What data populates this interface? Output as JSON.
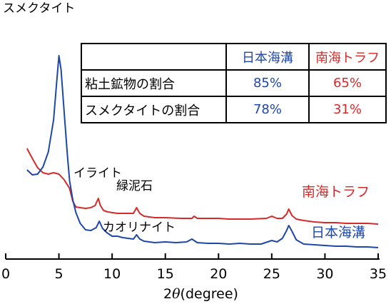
{
  "chart_data": {
    "type": "line",
    "xlabel_prefix": "2",
    "xlabel_theta": "θ",
    "xlabel_unit": "(degree)",
    "xlim": [
      0,
      35
    ],
    "x_ticks": [
      0,
      5,
      10,
      15,
      20,
      25,
      30,
      35
    ],
    "series": [
      {
        "name": "南海トラフ",
        "color": "#d42a2a",
        "x": [
          2.0,
          2.5,
          3.0,
          3.5,
          4.0,
          4.5,
          5.0,
          5.5,
          6.0,
          6.3,
          6.6,
          7.0,
          7.5,
          8.0,
          8.4,
          8.7,
          8.9,
          9.2,
          9.6,
          10.5,
          11.5,
          12.0,
          12.3,
          12.6,
          13.0,
          14.0,
          15.0,
          16.5,
          17.5,
          17.7,
          18.0,
          19.0,
          20.0,
          21.0,
          22.0,
          23.0,
          24.5,
          25.0,
          25.5,
          26.0,
          26.4,
          26.6,
          26.9,
          27.3,
          28.0,
          29.0,
          30.0,
          31.0,
          32.0,
          33.0,
          34.0,
          35.0
        ],
        "y": [
          140,
          126,
          113,
          106,
          104,
          106,
          104,
          96,
          84,
          66,
          58,
          57,
          56,
          57,
          60,
          70,
          60,
          53,
          51,
          49,
          49,
          49,
          57,
          49,
          45,
          43,
          43,
          42,
          42,
          45,
          42,
          42,
          42,
          41,
          41,
          41,
          42,
          45,
          42,
          42,
          48,
          55,
          46,
          41,
          39,
          37,
          36,
          36,
          35,
          35,
          35,
          34
        ]
      },
      {
        "name": "日本海溝",
        "color": "#1f47a8",
        "x": [
          2.0,
          2.5,
          3.0,
          3.5,
          4.0,
          4.5,
          4.8,
          5.0,
          5.2,
          5.5,
          5.8,
          6.0,
          6.3,
          6.6,
          7.0,
          7.5,
          8.0,
          8.5,
          8.8,
          9.1,
          9.5,
          10.0,
          10.5,
          11.0,
          11.5,
          12.0,
          12.3,
          12.6,
          13.0,
          14.0,
          15.0,
          16.0,
          17.0,
          17.5,
          18.0,
          19.0,
          20.0,
          21.0,
          22.0,
          23.0,
          24.0,
          25.0,
          25.5,
          26.0,
          26.4,
          26.6,
          26.9,
          27.3,
          28.0,
          29.0,
          30.0,
          31.0,
          32.0,
          33.0,
          34.0,
          35.0
        ],
        "y": [
          110,
          103,
          104,
          114,
          135,
          180,
          235,
          270,
          250,
          190,
          130,
          95,
          68,
          50,
          35,
          26,
          25,
          29,
          38,
          28,
          22,
          17,
          17,
          15,
          14,
          13,
          19,
          13,
          10,
          8,
          9,
          8,
          9,
          13,
          8,
          7,
          7,
          6,
          7,
          6,
          6,
          11,
          9,
          14,
          25,
          32,
          24,
          12,
          6,
          5,
          4,
          3,
          3,
          2,
          2,
          1
        ]
      }
    ],
    "annotations": [
      "スメクタイト",
      "イライト",
      "緑泥石",
      "カオリナイト"
    ],
    "table": {
      "headers": [
        "",
        "日本海溝",
        "南海トラフ"
      ],
      "rows": [
        {
          "label": "粘土鉱物の割合",
          "japan": "85%",
          "nankai": "65%"
        },
        {
          "label": "スメクタイトの割合",
          "japan": "78%",
          "nankai": "31%"
        }
      ]
    }
  }
}
